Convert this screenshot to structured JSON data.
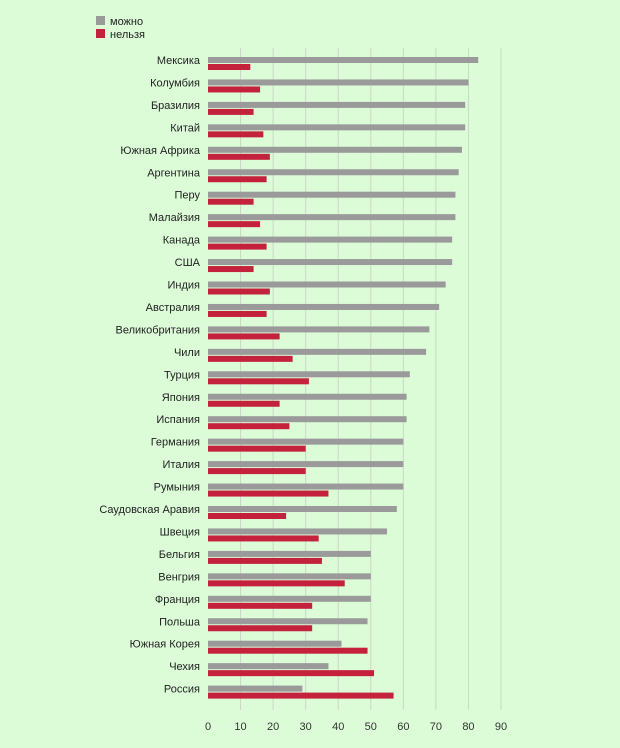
{
  "colors": {
    "background": "#dcfcd8",
    "series_1": "#9a9a9a",
    "series_2": "#c4213c",
    "gridline": "#c9d8c4"
  },
  "chart_data": {
    "type": "bar",
    "orientation": "horizontal",
    "title": "",
    "xlabel": "",
    "ylabel": "",
    "xlim": [
      0,
      90
    ],
    "x_ticks": [
      0,
      10,
      20,
      30,
      40,
      50,
      60,
      70,
      80,
      90
    ],
    "grid": true,
    "legend_position": "top-left",
    "categories": [
      "Мексика",
      "Колумбия",
      "Бразилия",
      "Китай",
      "Южная Африка",
      "Аргентина",
      "Перу",
      "Малайзия",
      "Канада",
      "США",
      "Индия",
      "Австралия",
      "Великобритания",
      "Чили",
      "Турция",
      "Япония",
      "Испания",
      "Германия",
      "Италия",
      "Румыния",
      "Саудовская Аравия",
      "Швеция",
      "Бельгия",
      "Венгрия",
      "Франция",
      "Польша",
      "Южная Корея",
      "Чехия",
      "Россия"
    ],
    "series": [
      {
        "name": "можно",
        "values": [
          83,
          80,
          79,
          79,
          78,
          77,
          76,
          76,
          75,
          75,
          73,
          71,
          68,
          67,
          62,
          61,
          61,
          60,
          60,
          60,
          58,
          55,
          50,
          50,
          50,
          49,
          41,
          37,
          29
        ]
      },
      {
        "name": "нельзя",
        "values": [
          13,
          16,
          14,
          17,
          19,
          18,
          14,
          16,
          18,
          14,
          19,
          18,
          22,
          26,
          31,
          22,
          25,
          30,
          30,
          37,
          24,
          34,
          35,
          42,
          32,
          32,
          49,
          51,
          57
        ]
      }
    ]
  }
}
